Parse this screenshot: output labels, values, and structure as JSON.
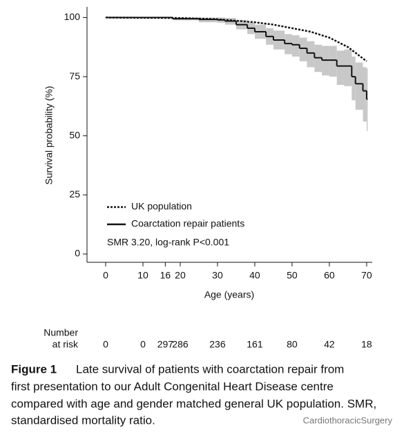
{
  "chart_data": {
    "type": "survival",
    "xlabel": "Age (years)",
    "ylabel": "Survival probability (%)",
    "annotation": "SMR 3.20, log-rank P<0.001",
    "xlim": [
      -5,
      71.5
    ],
    "ylim": [
      -3.5,
      104.5
    ],
    "xticks": [
      0,
      10,
      16,
      20,
      30,
      40,
      50,
      60,
      70
    ],
    "yticks": [
      0,
      25,
      50,
      75,
      100
    ],
    "band_color": "#c8c8c8",
    "series": [
      {
        "name": "UK population",
        "color": "#111111",
        "style": "dashed",
        "x": [
          0,
          20,
          30,
          40,
          45,
          50,
          55,
          60,
          65,
          70
        ],
        "values": [
          100,
          99.8,
          99.3,
          98,
          97,
          95.5,
          94,
          91.5,
          87.5,
          81.5
        ]
      },
      {
        "name": "Coarctation repair patients",
        "color": "#111111",
        "style": "step",
        "x": [
          0,
          18,
          25,
          30,
          32,
          35,
          38,
          40,
          43,
          45,
          48,
          50,
          52,
          54,
          56,
          58,
          60,
          62,
          64,
          66,
          67,
          69,
          70
        ],
        "values": [
          100,
          99.5,
          99.2,
          99,
          98.5,
          97,
          95.5,
          94,
          92,
          90.5,
          89,
          88.5,
          87,
          85,
          83,
          82,
          82,
          79.5,
          79.5,
          75,
          72,
          69,
          65.5
        ],
        "lower": [
          99.8,
          98.8,
          98,
          97.8,
          97,
          95,
          93,
          91,
          88.5,
          86.5,
          84.5,
          83.5,
          81.5,
          79,
          77,
          75.5,
          75,
          71.5,
          71,
          65,
          61,
          56,
          52
        ],
        "upper": [
          100,
          100,
          100,
          100,
          99.8,
          99,
          98,
          97,
          95.5,
          94.5,
          93,
          92.5,
          91.5,
          90,
          88.5,
          88,
          88,
          86,
          86.5,
          83.5,
          81,
          79,
          78.5
        ]
      }
    ],
    "risk_table": {
      "label": [
        "Number",
        "at risk"
      ],
      "counts": [
        0,
        0,
        297,
        286,
        236,
        161,
        80,
        42,
        18
      ]
    }
  },
  "caption": {
    "label": "Figure 1",
    "lines": [
      "Late survival of patients with coarctation repair from",
      "first presentation to our Adult Congenital Heart Disease centre",
      "compared with age and gender matched general UK population. SMR,",
      "standardised mortality ratio."
    ]
  },
  "watermark": "CardiothoracicSurgery"
}
